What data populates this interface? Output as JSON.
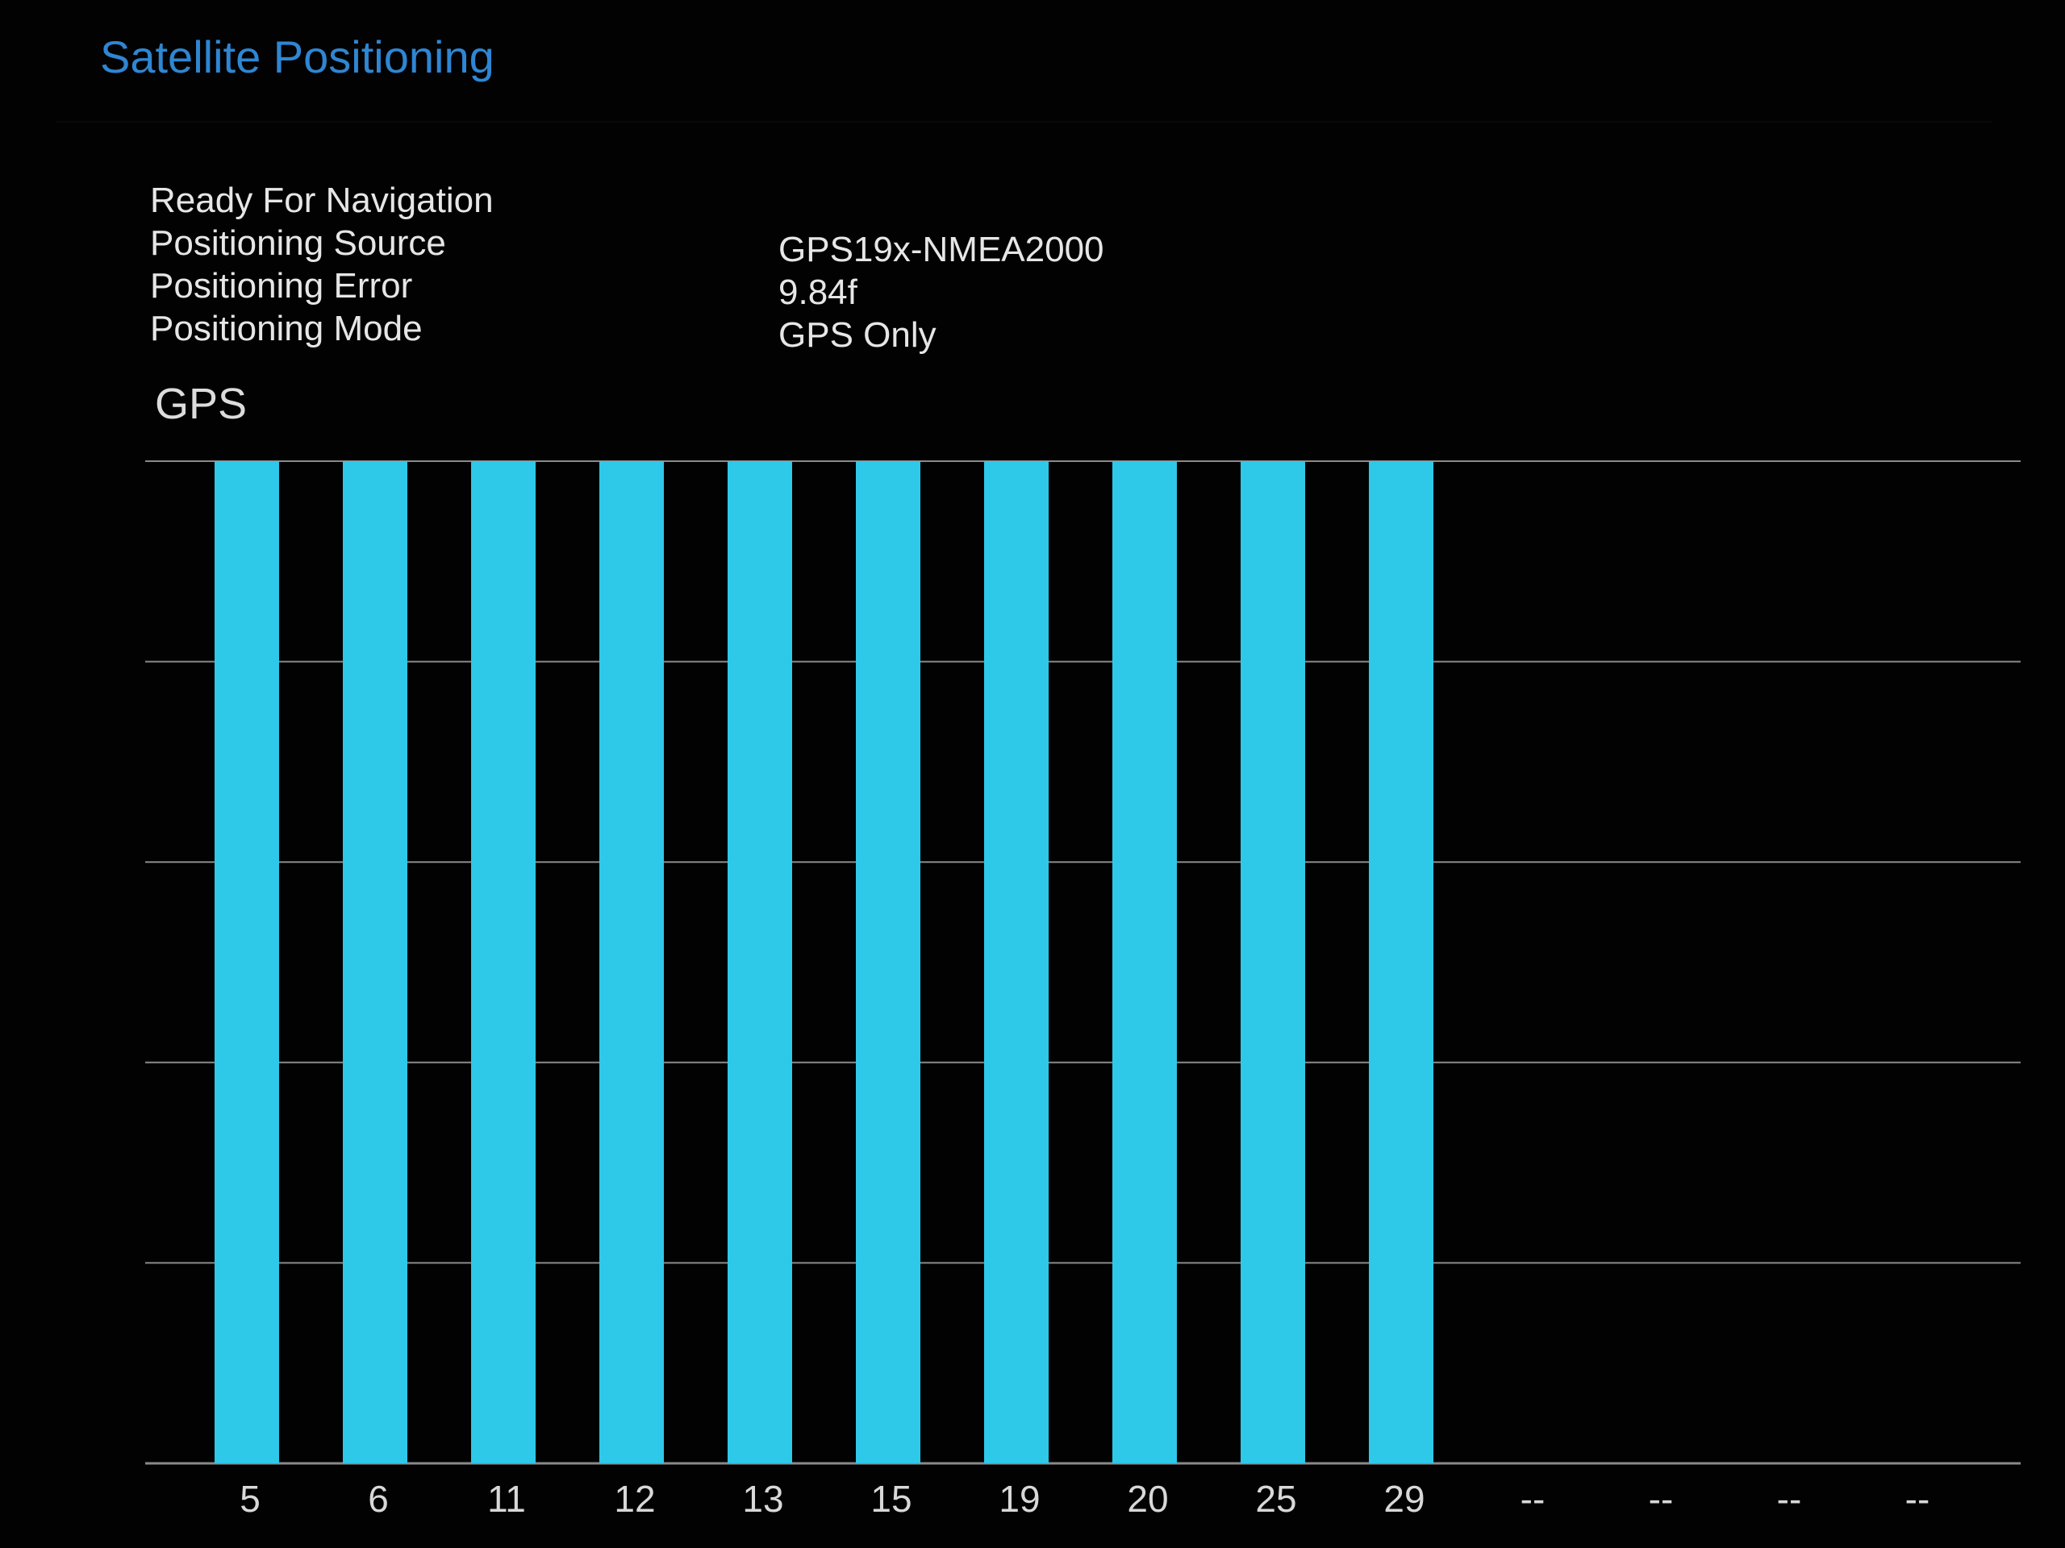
{
  "header": {
    "title": "Satellite Positioning"
  },
  "status": {
    "rows": [
      {
        "label": "Ready For Navigation",
        "value": ""
      },
      {
        "label": "Positioning Source",
        "value": "GPS19x-NMEA2000"
      },
      {
        "label": "Positioning Error",
        "value": "9.84f"
      },
      {
        "label": "Positioning Mode",
        "value": "GPS Only"
      }
    ]
  },
  "gps_section": {
    "label": "GPS"
  },
  "colors": {
    "bar": "#2ec8e8",
    "grid": "#8a8a8a",
    "tick_label": "#d8d8d8",
    "title": "#2f86d2"
  },
  "chart_data": {
    "type": "bar",
    "title": "GPS",
    "categories": [
      "5",
      "6",
      "11",
      "12",
      "13",
      "15",
      "19",
      "20",
      "25",
      "29",
      "--",
      "--",
      "--",
      "--"
    ],
    "values": [
      100,
      100,
      100,
      100,
      100,
      100,
      100,
      100,
      100,
      100,
      0,
      0,
      0,
      0
    ],
    "ylim": [
      0,
      100
    ],
    "grid": true,
    "xlabel": "",
    "ylabel": ""
  }
}
